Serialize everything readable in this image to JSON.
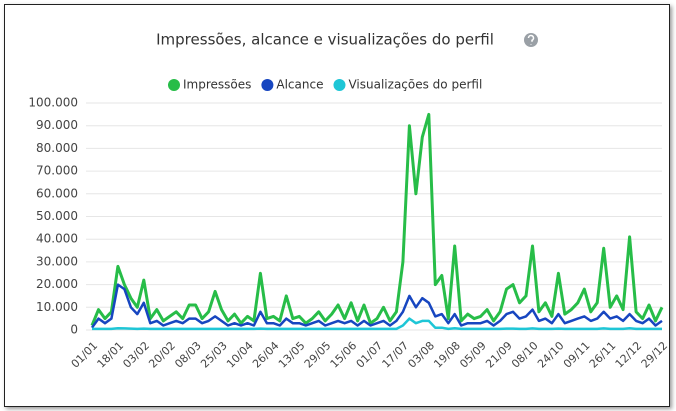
{
  "chart_data": {
    "type": "line",
    "title": "Impressões, alcance e visualizações do perfil",
    "categories": [
      "01/01",
      null,
      null,
      null,
      "18/01",
      null,
      null,
      null,
      "03/02",
      null,
      null,
      null,
      "20/02",
      null,
      null,
      null,
      "08/03",
      null,
      null,
      null,
      "25/03",
      null,
      null,
      null,
      "10/04",
      null,
      null,
      null,
      "26/04",
      null,
      null,
      null,
      "13/05",
      null,
      null,
      null,
      "29/05",
      null,
      null,
      null,
      "15/06",
      null,
      null,
      null,
      "01/07",
      null,
      null,
      null,
      "17/07",
      null,
      null,
      null,
      "03/08",
      null,
      null,
      null,
      "19/08",
      null,
      null,
      null,
      "05/09",
      null,
      null,
      null,
      "21/09",
      null,
      null,
      null,
      "08/10",
      null,
      null,
      null,
      "24/10",
      null,
      null,
      null,
      "09/11",
      null,
      null,
      null,
      "26/11",
      null,
      null,
      null,
      "12/12",
      null,
      null,
      null,
      "29/12"
    ],
    "series": [
      {
        "name": "Impressões",
        "color": "#27bd48",
        "values": [
          2000,
          9000,
          5000,
          8000,
          28000,
          20000,
          14000,
          10000,
          22000,
          5000,
          9000,
          4000,
          6000,
          8000,
          5000,
          11000,
          11000,
          5000,
          8000,
          17000,
          9000,
          4000,
          7000,
          3000,
          6000,
          4000,
          25000,
          5000,
          6000,
          4000,
          15000,
          5000,
          6000,
          3000,
          5000,
          8000,
          4000,
          7000,
          11000,
          5000,
          12000,
          4000,
          11000,
          3000,
          5000,
          10000,
          4000,
          8000,
          30000,
          90000,
          60000,
          85000,
          95000,
          20000,
          24000,
          5000,
          37000,
          4000,
          7000,
          5000,
          6000,
          9000,
          4000,
          8000,
          18000,
          20000,
          12000,
          15000,
          37000,
          8000,
          12000,
          6000,
          25000,
          7000,
          9000,
          12000,
          18000,
          8000,
          12000,
          36000,
          10000,
          15000,
          9000,
          41000,
          8000,
          5000,
          11000,
          4000,
          10000
        ]
      },
      {
        "name": "Alcance",
        "color": "#1746c0",
        "values": [
          1000,
          5000,
          3000,
          5000,
          20000,
          18000,
          10000,
          7000,
          12000,
          3000,
          4000,
          2000,
          3000,
          4000,
          3000,
          5000,
          5000,
          3000,
          4000,
          6000,
          4000,
          2000,
          3000,
          2000,
          3000,
          2000,
          8000,
          3000,
          3000,
          2000,
          5000,
          3000,
          3000,
          2000,
          3000,
          4000,
          2000,
          3000,
          4000,
          3000,
          4000,
          2000,
          4000,
          2000,
          3000,
          4000,
          2000,
          4000,
          8000,
          15000,
          10000,
          14000,
          12000,
          6000,
          7000,
          3000,
          7000,
          2000,
          3000,
          3000,
          3000,
          4000,
          2000,
          4000,
          7000,
          8000,
          5000,
          6000,
          9000,
          4000,
          5000,
          3000,
          7000,
          3000,
          4000,
          5000,
          6000,
          4000,
          5000,
          8000,
          5000,
          6000,
          4000,
          7000,
          4000,
          3000,
          5000,
          2000,
          4000
        ]
      },
      {
        "name": "Visualizações do perfil",
        "color": "#1ec6d6",
        "values": [
          500,
          500,
          500,
          500,
          800,
          700,
          600,
          500,
          600,
          500,
          500,
          500,
          500,
          500,
          500,
          500,
          500,
          500,
          500,
          500,
          500,
          500,
          500,
          500,
          500,
          500,
          600,
          500,
          500,
          500,
          500,
          500,
          500,
          500,
          500,
          500,
          500,
          500,
          500,
          500,
          500,
          500,
          500,
          500,
          500,
          500,
          500,
          500,
          2000,
          5000,
          3000,
          4000,
          4000,
          1000,
          1000,
          500,
          800,
          500,
          500,
          500,
          500,
          500,
          500,
          500,
          600,
          600,
          500,
          500,
          700,
          500,
          500,
          500,
          600,
          500,
          500,
          500,
          500,
          500,
          500,
          700,
          500,
          500,
          500,
          800,
          500,
          500,
          500,
          500,
          500
        ]
      }
    ],
    "ylim": [
      0,
      100000
    ],
    "yticks": [
      0,
      {
        "value": 10000,
        "label": "10.000"
      },
      {
        "value": 20000,
        "label": "20.000"
      },
      {
        "value": 30000,
        "label": "30.000"
      },
      {
        "value": 40000,
        "label": "40.000"
      },
      {
        "value": 50000,
        "label": "50.000"
      },
      {
        "value": 60000,
        "label": "60.000"
      },
      {
        "value": 70000,
        "label": "70.000"
      },
      {
        "value": 80000,
        "label": "80.000"
      },
      {
        "value": 90000,
        "label": "90.000"
      },
      {
        "value": 100000,
        "label": "100.000"
      }
    ],
    "grid": true
  }
}
